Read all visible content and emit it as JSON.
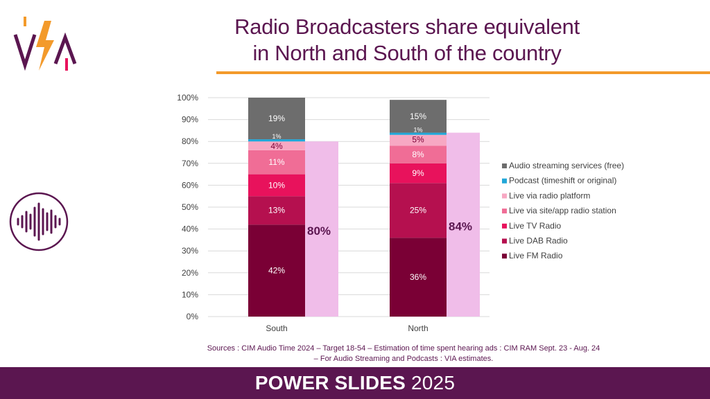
{
  "header": {
    "title_line1": "Radio Broadcasters share equivalent",
    "title_line2": "in North and South of the country"
  },
  "colors": {
    "brand_purple": "#5b1650",
    "accent_orange": "#f39a2b",
    "total_bar": "#f0bde9"
  },
  "chart_data": {
    "type": "bar",
    "stacked": true,
    "categories": [
      "South",
      "North"
    ],
    "ylim": [
      0,
      100
    ],
    "y_ticks": [
      "0%",
      "10%",
      "20%",
      "30%",
      "40%",
      "50%",
      "60%",
      "70%",
      "80%",
      "90%",
      "100%"
    ],
    "grid": true,
    "legend_position": "right",
    "series": [
      {
        "name": "Live FM Radio",
        "color": "#7a0035",
        "values": [
          42,
          36
        ],
        "labels": [
          "42%",
          "36%"
        ]
      },
      {
        "name": "Live DAB Radio",
        "color": "#b5104f",
        "values": [
          13,
          25
        ],
        "labels": [
          "13%",
          "25%"
        ]
      },
      {
        "name": "Live TV Radio",
        "color": "#e8125c",
        "values": [
          10,
          9
        ],
        "labels": [
          "10%",
          "9%"
        ]
      },
      {
        "name": "Live via site/app radio station",
        "color": "#f06d96",
        "values": [
          11,
          8
        ],
        "labels": [
          "11%",
          "8%"
        ]
      },
      {
        "name": "Live via radio platform",
        "color": "#f7a8c3",
        "values": [
          4,
          5
        ],
        "labels": [
          "4%",
          "5%"
        ]
      },
      {
        "name": "Podcast (timeshift or original)",
        "color": "#22a7d8",
        "values": [
          1,
          1
        ],
        "labels": [
          "1%",
          "1%"
        ]
      },
      {
        "name": "Audio streaming services (free)",
        "color": "#6d6d6d",
        "values": [
          19,
          15
        ],
        "labels": [
          "19%",
          "15%"
        ]
      }
    ],
    "totals": {
      "values": [
        80,
        84
      ],
      "labels": [
        "80%",
        "84%"
      ]
    }
  },
  "sources": {
    "line1": "Sources : CIM Audio Time 2024 – Target 18-54 – Estimation of time spent hearing ads : CIM RAM Sept. 23 - Aug. 24",
    "line2": "– For Audio Streaming and Podcasts : VIA estimates."
  },
  "footer": {
    "bold": "POWER SLIDES",
    "year": "2025"
  }
}
